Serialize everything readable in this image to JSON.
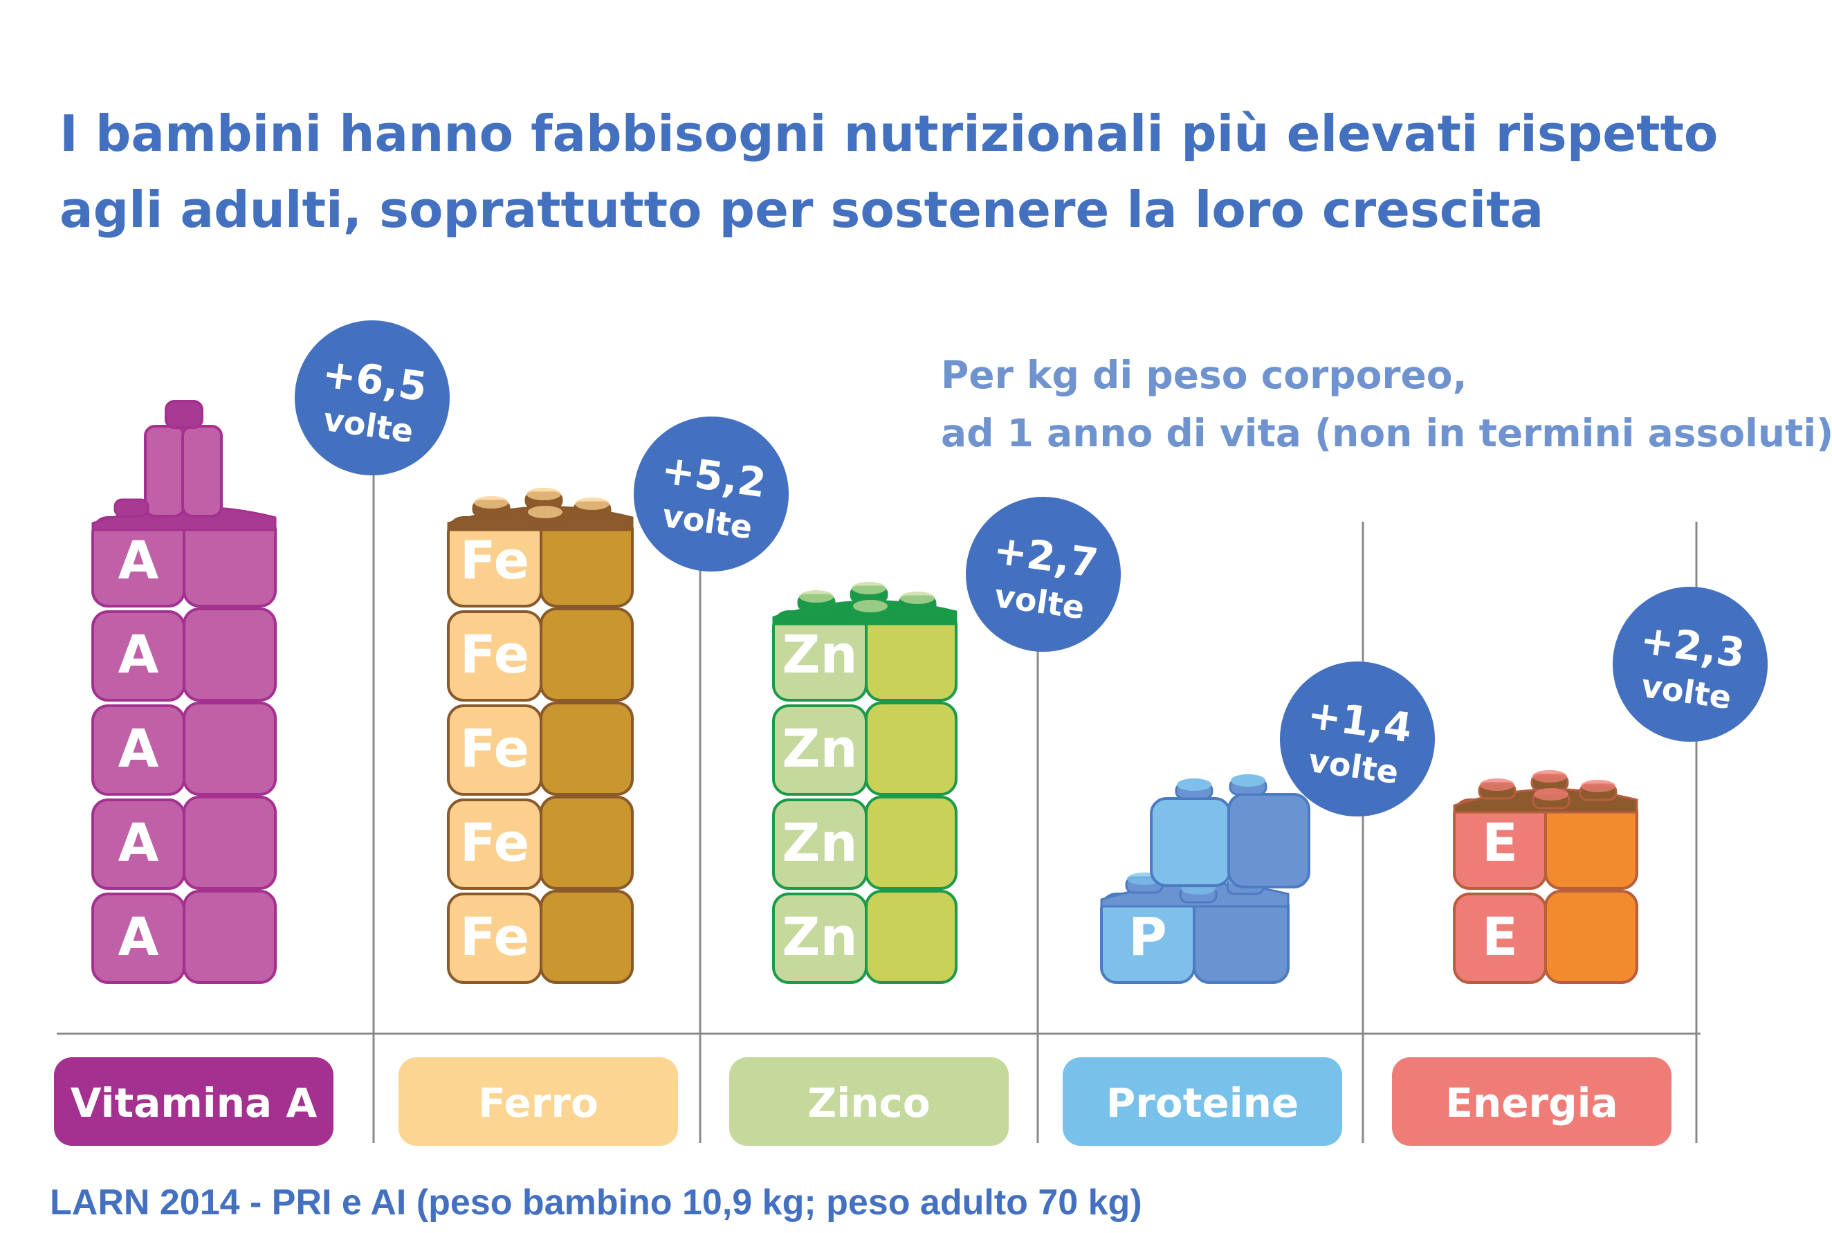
{
  "title_lines": [
    "I bambini hanno fabbisogni nutrizionali più elevati rispetto",
    "agli adulti, soprattutto per sostenere la loro crescita"
  ],
  "note_lines": [
    "Per kg di peso corporeo,",
    "ad 1 anno di vita (non in termini assoluti)"
  ],
  "source": "LARN 2014 - PRI e AI (peso bambino 10,9 kg; peso adulto 70 kg)",
  "chart_data": {
    "type": "bar",
    "categories": [
      "Vitamina A",
      "Ferro",
      "Zinco",
      "Proteine",
      "Energia"
    ],
    "values": [
      6.5,
      5.2,
      2.7,
      1.4,
      2.3
    ],
    "value_labels": [
      "+6,5",
      "+5,2",
      "+2,7",
      "+1,4",
      "+2,3"
    ],
    "unit_label": "volte",
    "block_letters": [
      "A",
      "Fe",
      "Zn",
      "P",
      "E"
    ],
    "block_counts": [
      5,
      5,
      4,
      1,
      2
    ],
    "title": "I bambini hanno fabbisogni nutrizionali più elevati rispetto agli adulti, soprattutto per sostenere la loro crescita",
    "xlabel": "",
    "ylabel": "",
    "grid": false,
    "legend": "none",
    "colors": {
      "Vitamina A": {
        "label_bg": "#a4318f",
        "front": "#c060a7",
        "side": "#c060a7",
        "top": "#a73a93",
        "stroke": "#a4318f"
      },
      "Ferro": {
        "label_bg": "#fbd591",
        "front": "#fbd08f",
        "side": "#c9962f",
        "top": "#8d5a2d",
        "stroke": "#8a5a2a"
      },
      "Zinco": {
        "label_bg": "#c4d99b",
        "front": "#c4d99b",
        "side": "#c9d158",
        "top": "#1a9a48",
        "stroke": "#1c9a4a"
      },
      "Proteine": {
        "label_bg": "#78c1ea",
        "front": "#7ec0ea",
        "side": "#6a93d1",
        "top": "#6a93d1",
        "stroke": "#4d7bc2"
      },
      "Energia": {
        "label_bg": "#ef7d77",
        "front": "#ef7d77",
        "side": "#f18b2e",
        "top": "#8d5a2d",
        "stroke": "#b85e3e"
      }
    },
    "circle_color": "#4470c0",
    "axis_color": "#8a8a8a"
  }
}
